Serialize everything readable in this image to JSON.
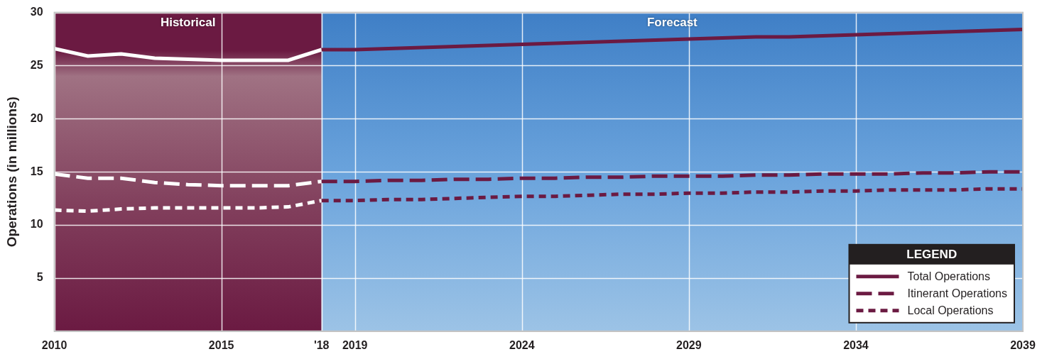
{
  "chart_data": {
    "type": "line",
    "x": [
      2010,
      2011,
      2012,
      2013,
      2014,
      2015,
      2016,
      2017,
      2018,
      2019,
      2020,
      2021,
      2022,
      2023,
      2024,
      2025,
      2026,
      2027,
      2028,
      2029,
      2030,
      2031,
      2032,
      2033,
      2034,
      2035,
      2036,
      2037,
      2038,
      2039
    ],
    "xlim": [
      2010,
      2039
    ],
    "xticks": [
      2010,
      2015,
      {
        "value": 2018,
        "label": "'18"
      },
      2019,
      2024,
      2029,
      2034,
      2039
    ],
    "ylim": [
      0,
      30
    ],
    "yticks": [
      5,
      10,
      15,
      20,
      25,
      30
    ],
    "y_label": "Operations (in millions)",
    "grid": true,
    "legend": "lower right",
    "legend_title": "LEGEND",
    "annotations": [
      {
        "text": "Historical",
        "x_range": [
          2010,
          2018
        ]
      },
      {
        "text": "Forecast",
        "x_range": [
          2018,
          2039
        ]
      }
    ],
    "series": [
      {
        "name": "Total Operations",
        "color": "#6b1a42",
        "line_style": "solid",
        "values": [
          26.6,
          25.9,
          26.1,
          25.7,
          25.6,
          25.5,
          25.5,
          25.5,
          26.5,
          26.5,
          26.6,
          26.7,
          26.8,
          26.9,
          27.0,
          27.1,
          27.2,
          27.3,
          27.4,
          27.5,
          27.6,
          27.7,
          27.7,
          27.8,
          27.9,
          28.0,
          28.1,
          28.2,
          28.3,
          28.4
        ]
      },
      {
        "name": "Itinerant Operations",
        "color": "#6b1a42",
        "line_style": "long_dash",
        "values": [
          14.8,
          14.4,
          14.4,
          14.0,
          13.8,
          13.7,
          13.7,
          13.7,
          14.1,
          14.1,
          14.2,
          14.2,
          14.3,
          14.3,
          14.4,
          14.4,
          14.5,
          14.5,
          14.6,
          14.6,
          14.6,
          14.7,
          14.7,
          14.8,
          14.8,
          14.8,
          14.9,
          14.9,
          15.0,
          15.0
        ]
      },
      {
        "name": "Local Operations",
        "color": "#6b1a42",
        "line_style": "short_dash",
        "values": [
          11.4,
          11.3,
          11.5,
          11.6,
          11.6,
          11.6,
          11.6,
          11.7,
          12.3,
          12.3,
          12.4,
          12.4,
          12.5,
          12.6,
          12.7,
          12.7,
          12.8,
          12.9,
          12.9,
          13.0,
          13.0,
          13.1,
          13.1,
          13.2,
          13.2,
          13.3,
          13.3,
          13.3,
          13.4,
          13.4
        ]
      }
    ]
  }
}
